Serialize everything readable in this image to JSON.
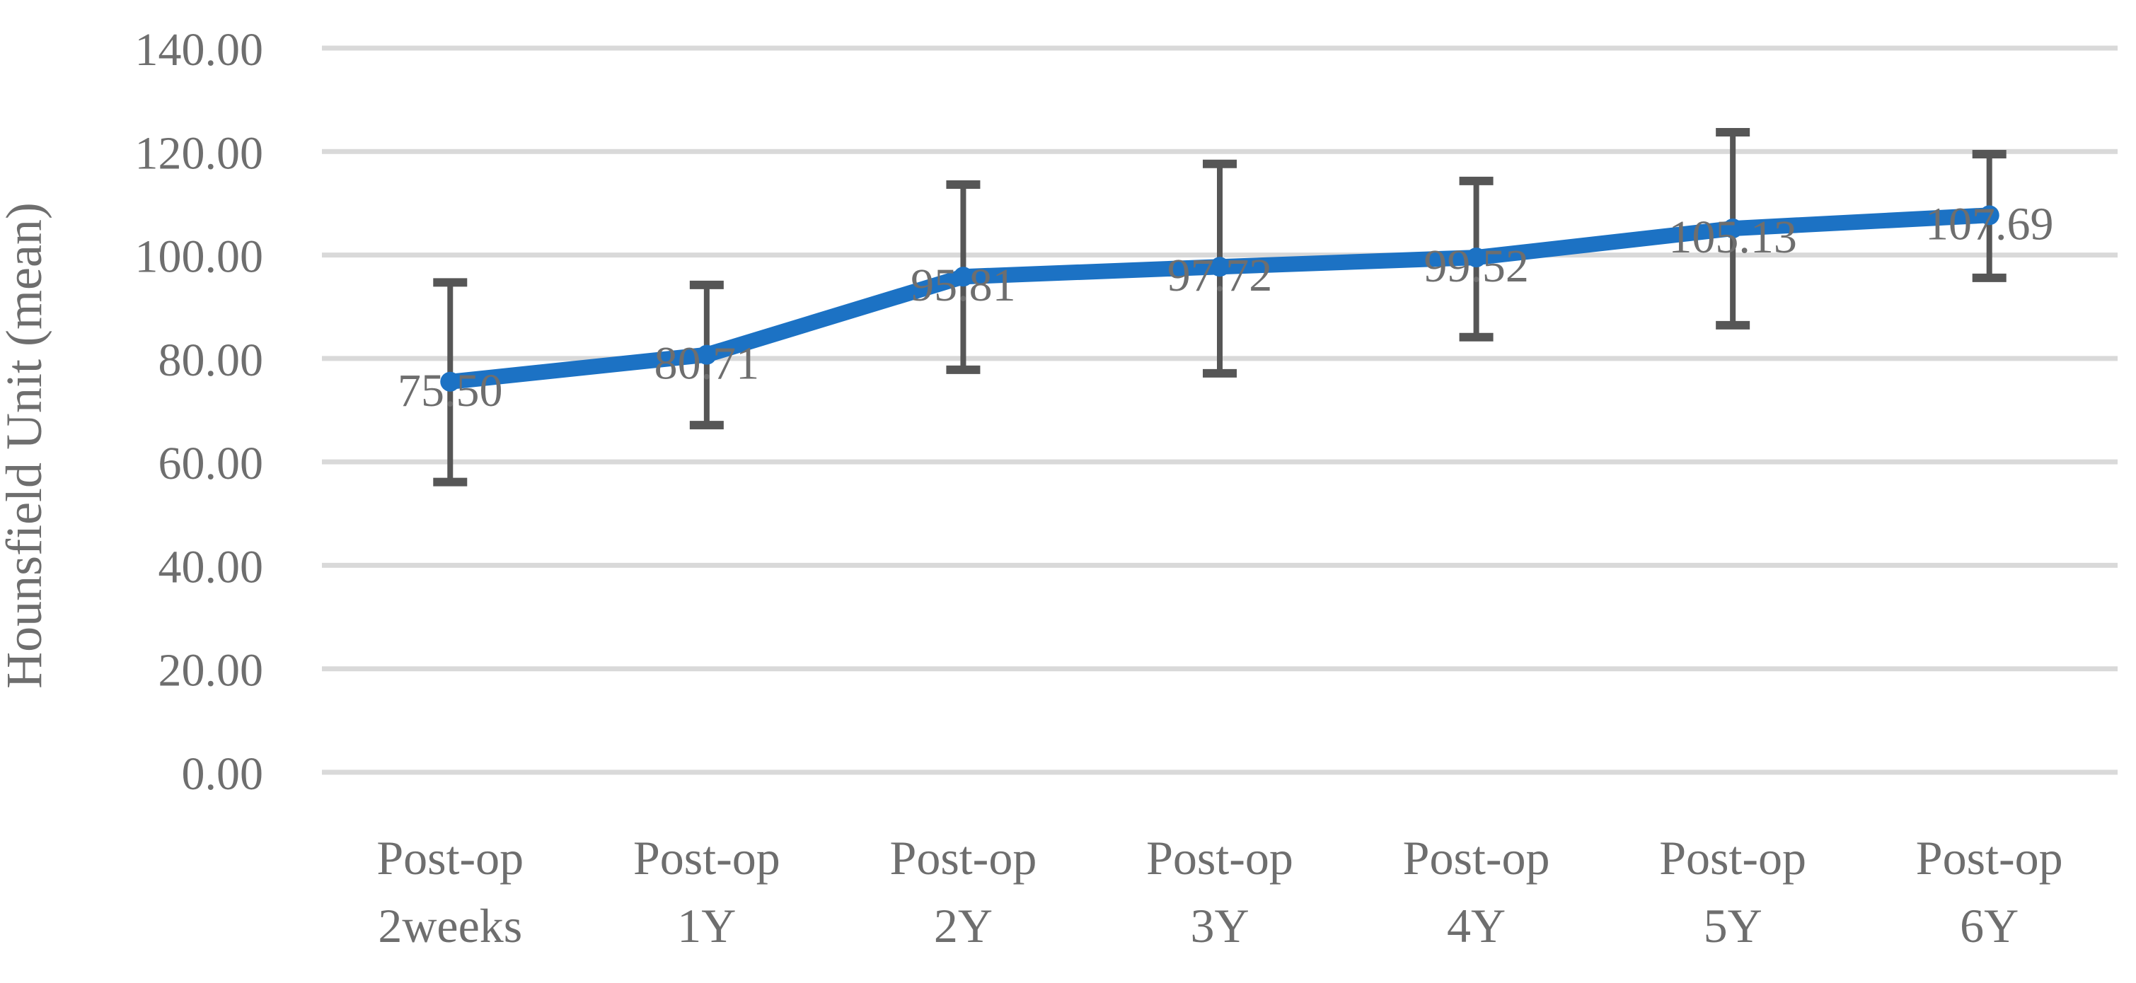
{
  "chart_data": {
    "type": "line",
    "title": "",
    "xlabel": "",
    "ylabel": "Hounsfield Unit (mean)",
    "ylim": [
      0,
      140
    ],
    "ytick_step": 20,
    "ytick_decimals": 2,
    "grid": true,
    "legend_position": "none",
    "categories": [
      [
        "Post-op",
        "2weeks"
      ],
      [
        "Post-op",
        "1Y"
      ],
      [
        "Post-op",
        "2Y"
      ],
      [
        "Post-op",
        "3Y"
      ],
      [
        "Post-op",
        "4Y"
      ],
      [
        "Post-op",
        "5Y"
      ],
      [
        "Post-op",
        "6Y"
      ]
    ],
    "series": [
      {
        "name": "Hounsfield Unit (mean)",
        "values": [
          75.5,
          80.71,
          95.81,
          97.72,
          99.52,
          105.13,
          107.69
        ],
        "data_labels": [
          "75.50",
          "80.71",
          "95.81",
          "97.72",
          "99.52",
          "105.13",
          "107.69"
        ],
        "error_upper": [
          19.2,
          13.5,
          17.8,
          19.9,
          14.8,
          18.6,
          11.8
        ],
        "error_lower": [
          19.4,
          13.6,
          18.0,
          20.6,
          15.4,
          18.7,
          12.1
        ]
      }
    ],
    "colors": {
      "line": "#1C72C4",
      "error_bar": "#565656",
      "gridline": "#D9D9D9",
      "text": "#6E6E6E"
    }
  }
}
